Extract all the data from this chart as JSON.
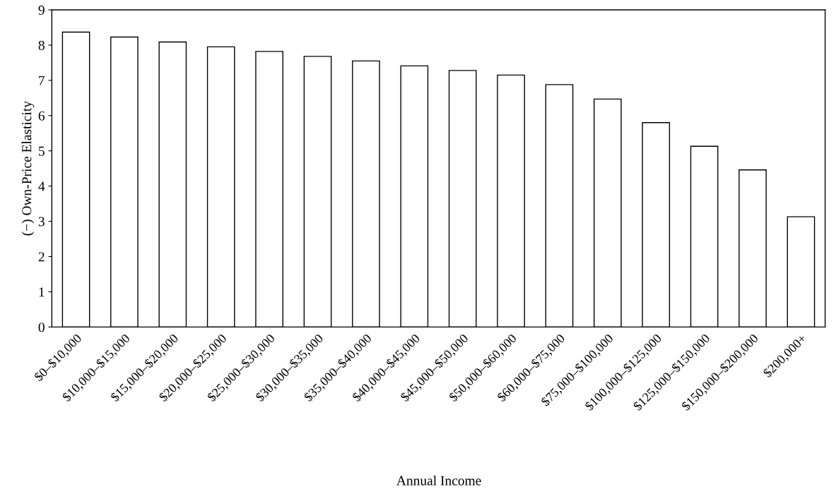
{
  "chart_data": {
    "type": "bar",
    "xlabel": "Annual Income",
    "ylabel": "(−) Own-Price Elasticity",
    "categories": [
      "$0–$10,000",
      "$10,000–$15,000",
      "$15,000–$20,000",
      "$20,000–$25,000",
      "$25,000–$30,000",
      "$30,000–$35,000",
      "$35,000–$40,000",
      "$40,000–$45,000",
      "$45,000–$50,000",
      "$50,000–$60,000",
      "$60,000–$75,000",
      "$75,000–$100,000",
      "$100,000–$125,000",
      "$125,000–$150,000",
      "$150,000–$200,000",
      "$200,000+"
    ],
    "values": [
      8.37,
      8.23,
      8.09,
      7.95,
      7.82,
      7.68,
      7.55,
      7.41,
      7.28,
      7.15,
      6.88,
      6.47,
      5.8,
      5.13,
      4.46,
      3.13
    ],
    "color": "#ffffff",
    "ylim": [
      0,
      9
    ],
    "yticks": [
      0,
      1,
      2,
      3,
      4,
      5,
      6,
      7,
      8,
      9
    ],
    "grid": false
  }
}
